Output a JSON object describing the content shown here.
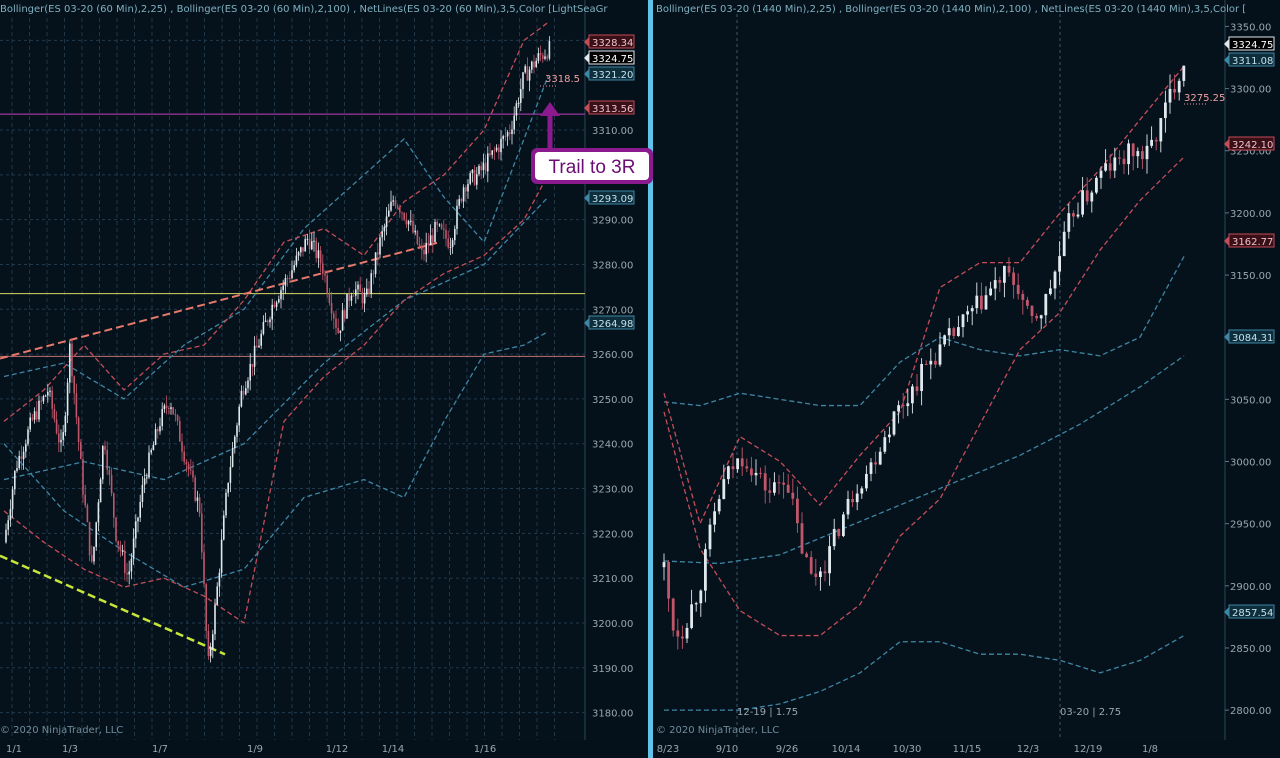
{
  "colors": {
    "background": "#05121c",
    "separator": "#5fc4e8",
    "candle_up": "#dfe9ee",
    "candle_down": "#c0566a",
    "bb_fast": "#c44d58",
    "bb_slow": "#3e86a4",
    "trendline_upper": "#e8786c",
    "trendline_lower": "#c8e63a",
    "magenta_line": "#c040c0",
    "yellow_line": "#d8d860",
    "salmon_line": "#c07070",
    "callout": "#8a1a8e"
  },
  "left": {
    "header": "Bollinger(ES 03-20 (60 Min),2,25) , Bollinger(ES 03-20 (60 Min),2,100) , NetLines(ES 03-20 (60 Min),3,5,Color  [LightSeaGr",
    "copyright": "© 2020 NinjaTrader, LLC",
    "y_ticks": [
      "3310.00",
      "3300.00",
      "3290.00",
      "3280.00",
      "3270.00",
      "3260.00",
      "3250.00",
      "3240.00",
      "3230.00",
      "3220.00",
      "3210.00",
      "3200.00",
      "3190.00",
      "3180.00"
    ],
    "date_labels": [
      "1/1",
      "1/3",
      "1/7",
      "1/9",
      "1/12",
      "1/14",
      "1/16"
    ],
    "price_tags": [
      {
        "text": "3328.34",
        "style": "red"
      },
      {
        "text": "3324.75",
        "style": "white"
      },
      {
        "text": "3321.20",
        "style": "teal"
      },
      {
        "text": "3313.56",
        "style": "red"
      },
      {
        "text": "3293.09",
        "style": "teal"
      },
      {
        "text": "3264.98",
        "style": "teal"
      }
    ],
    "level_label": "3318.5",
    "callout": "Trail to 3R",
    "y_range": [
      3175,
      3335
    ]
  },
  "right": {
    "header": "Bollinger(ES 03-20 (1440 Min),2,25) , Bollinger(ES 03-20 (1440 Min),2,100) , NetLines(ES 03-20 (1440 Min),3,5,Color  [",
    "copyright": "© 2020 NinjaTrader, LLC",
    "y_ticks": [
      "3350.00",
      "3300.00",
      "3250.00",
      "3200.00",
      "3150.00",
      "3100.00",
      "3050.00",
      "3000.00",
      "2950.00",
      "2900.00",
      "2850.00",
      "2800.00"
    ],
    "date_labels": [
      "8/23",
      "9/10",
      "9/26",
      "10/14",
      "10/30",
      "11/15",
      "12/3",
      "12/19",
      "1/8"
    ],
    "price_tags": [
      {
        "text": "3324.75",
        "style": "white"
      },
      {
        "text": "3311.08",
        "style": "teal"
      },
      {
        "text": "3242.10",
        "style": "red"
      },
      {
        "text": "3162.77",
        "style": "red"
      },
      {
        "text": "3084.31",
        "style": "teal"
      },
      {
        "text": "2857.54",
        "style": "teal"
      }
    ],
    "level_label": "3275.25",
    "notes": [
      "12-19 | 1.75",
      "03-20 | 2.75"
    ],
    "y_range": [
      2780,
      3360
    ]
  },
  "chart_data": [
    {
      "type": "candlestick",
      "timeframe": "60 Min",
      "ylim": [
        3175,
        3335
      ],
      "x_ticks": [
        "1/1",
        "1/3",
        "1/7",
        "1/9",
        "1/12",
        "1/14",
        "1/16"
      ],
      "path": [
        [
          0,
          3218
        ],
        [
          12,
          3235
        ],
        [
          28,
          3245
        ],
        [
          44,
          3252
        ],
        [
          58,
          3238
        ],
        [
          66,
          3262
        ],
        [
          78,
          3232
        ],
        [
          88,
          3212
        ],
        [
          100,
          3242
        ],
        [
          112,
          3220
        ],
        [
          124,
          3210
        ],
        [
          140,
          3232
        ],
        [
          156,
          3245
        ],
        [
          166,
          3250
        ],
        [
          180,
          3238
        ],
        [
          196,
          3225
        ],
        [
          204,
          3190
        ],
        [
          212,
          3205
        ],
        [
          224,
          3232
        ],
        [
          238,
          3252
        ],
        [
          254,
          3262
        ],
        [
          270,
          3272
        ],
        [
          286,
          3278
        ],
        [
          304,
          3286
        ],
        [
          318,
          3280
        ],
        [
          334,
          3265
        ],
        [
          348,
          3275
        ],
        [
          362,
          3272
        ],
        [
          376,
          3285
        ],
        [
          390,
          3295
        ],
        [
          404,
          3290
        ],
        [
          418,
          3282
        ],
        [
          432,
          3288
        ],
        [
          446,
          3285
        ],
        [
          460,
          3298
        ],
        [
          474,
          3300
        ],
        [
          490,
          3305
        ],
        [
          506,
          3310
        ],
        [
          520,
          3322
        ],
        [
          534,
          3326
        ],
        [
          544,
          3328
        ]
      ],
      "bb_fast_upper": [
        [
          0,
          3245
        ],
        [
          40,
          3252
        ],
        [
          80,
          3262
        ],
        [
          120,
          3252
        ],
        [
          160,
          3260
        ],
        [
          200,
          3262
        ],
        [
          240,
          3272
        ],
        [
          280,
          3285
        ],
        [
          320,
          3288
        ],
        [
          360,
          3282
        ],
        [
          400,
          3294
        ],
        [
          440,
          3300
        ],
        [
          480,
          3310
        ],
        [
          520,
          3330
        ],
        [
          544,
          3334
        ]
      ],
      "bb_fast_lower": [
        [
          0,
          3225
        ],
        [
          40,
          3218
        ],
        [
          80,
          3212
        ],
        [
          120,
          3208
        ],
        [
          160,
          3210
        ],
        [
          200,
          3206
        ],
        [
          240,
          3200
        ],
        [
          280,
          3245
        ],
        [
          320,
          3255
        ],
        [
          360,
          3262
        ],
        [
          400,
          3272
        ],
        [
          440,
          3278
        ],
        [
          480,
          3282
        ],
        [
          520,
          3290
        ],
        [
          544,
          3300
        ]
      ],
      "bb_slow_upper": [
        [
          0,
          3255
        ],
        [
          60,
          3258
        ],
        [
          120,
          3250
        ],
        [
          180,
          3262
        ],
        [
          240,
          3270
        ],
        [
          300,
          3288
        ],
        [
          360,
          3300
        ],
        [
          400,
          3308
        ],
        [
          440,
          3295
        ],
        [
          480,
          3285
        ],
        [
          520,
          3308
        ],
        [
          544,
          3322
        ]
      ],
      "bb_slow_lower": [
        [
          0,
          3240
        ],
        [
          60,
          3225
        ],
        [
          120,
          3216
        ],
        [
          180,
          3208
        ],
        [
          240,
          3212
        ],
        [
          300,
          3228
        ],
        [
          360,
          3232
        ],
        [
          400,
          3228
        ],
        [
          440,
          3245
        ],
        [
          480,
          3260
        ],
        [
          520,
          3262
        ],
        [
          544,
          3265
        ]
      ],
      "bb_slow_mid": [
        [
          0,
          3232
        ],
        [
          80,
          3236
        ],
        [
          160,
          3232
        ],
        [
          240,
          3240
        ],
        [
          320,
          3258
        ],
        [
          400,
          3272
        ],
        [
          480,
          3280
        ],
        [
          544,
          3295
        ]
      ],
      "horizontal_levels": [
        3313.56,
        3273.5,
        3259.5
      ],
      "trendline_upper": [
        [
          0,
          3259
        ],
        [
          440,
          3285
        ]
      ],
      "trendline_lower": [
        [
          0,
          3215
        ],
        [
          225,
          3193
        ]
      ],
      "annotation": "Trail to 3R"
    },
    {
      "type": "candlestick",
      "timeframe": "1440 Min",
      "ylim": [
        2780,
        3360
      ],
      "x_ticks": [
        "8/23",
        "9/10",
        "9/26",
        "10/14",
        "10/30",
        "11/15",
        "12/3",
        "12/19",
        "1/8"
      ],
      "path": [
        [
          664,
          2915
        ],
        [
          672,
          2870
        ],
        [
          680,
          2860
        ],
        [
          690,
          2880
        ],
        [
          700,
          2900
        ],
        [
          712,
          2950
        ],
        [
          722,
          2980
        ],
        [
          732,
          2995
        ],
        [
          744,
          3005
        ],
        [
          756,
          2990
        ],
        [
          770,
          2975
        ],
        [
          786,
          2990
        ],
        [
          800,
          2935
        ],
        [
          812,
          2905
        ],
        [
          826,
          2920
        ],
        [
          840,
          2950
        ],
        [
          856,
          2980
        ],
        [
          870,
          2995
        ],
        [
          884,
          3020
        ],
        [
          896,
          3040
        ],
        [
          910,
          3055
        ],
        [
          924,
          3075
        ],
        [
          940,
          3090
        ],
        [
          956,
          3105
        ],
        [
          972,
          3120
        ],
        [
          988,
          3135
        ],
        [
          1004,
          3150
        ],
        [
          1018,
          3140
        ],
        [
          1030,
          3110
        ],
        [
          1044,
          3125
        ],
        [
          1058,
          3160
        ],
        [
          1072,
          3200
        ],
        [
          1088,
          3215
        ],
        [
          1104,
          3235
        ],
        [
          1118,
          3240
        ],
        [
          1132,
          3250
        ],
        [
          1146,
          3245
        ],
        [
          1160,
          3270
        ],
        [
          1172,
          3300
        ],
        [
          1184,
          3322
        ]
      ],
      "bb_fast_upper": [
        [
          664,
          3055
        ],
        [
          700,
          2950
        ],
        [
          740,
          3020
        ],
        [
          780,
          3000
        ],
        [
          820,
          2965
        ],
        [
          860,
          3005
        ],
        [
          900,
          3040
        ],
        [
          940,
          3140
        ],
        [
          980,
          3160
        ],
        [
          1020,
          3160
        ],
        [
          1060,
          3200
        ],
        [
          1100,
          3235
        ],
        [
          1140,
          3275
        ],
        [
          1184,
          3318
        ]
      ],
      "bb_fast_lower": [
        [
          664,
          3040
        ],
        [
          700,
          2930
        ],
        [
          740,
          2880
        ],
        [
          780,
          2860
        ],
        [
          820,
          2860
        ],
        [
          860,
          2885
        ],
        [
          900,
          2940
        ],
        [
          940,
          2970
        ],
        [
          980,
          3030
        ],
        [
          1020,
          3090
        ],
        [
          1060,
          3120
        ],
        [
          1100,
          3170
        ],
        [
          1140,
          3210
        ],
        [
          1184,
          3245
        ]
      ],
      "bb_slow_upper": [
        [
          664,
          3048
        ],
        [
          700,
          3045
        ],
        [
          740,
          3055
        ],
        [
          780,
          3050
        ],
        [
          820,
          3045
        ],
        [
          860,
          3045
        ],
        [
          900,
          3080
        ],
        [
          940,
          3100
        ],
        [
          980,
          3090
        ],
        [
          1020,
          3085
        ],
        [
          1060,
          3090
        ],
        [
          1100,
          3085
        ],
        [
          1140,
          3100
        ],
        [
          1184,
          3165
        ]
      ],
      "bb_slow_lower": [
        [
          664,
          2800
        ],
        [
          700,
          2800
        ],
        [
          740,
          2800
        ],
        [
          780,
          2805
        ],
        [
          820,
          2815
        ],
        [
          860,
          2830
        ],
        [
          900,
          2855
        ],
        [
          940,
          2855
        ],
        [
          980,
          2845
        ],
        [
          1020,
          2845
        ],
        [
          1060,
          2840
        ],
        [
          1100,
          2830
        ],
        [
          1140,
          2840
        ],
        [
          1184,
          2860
        ]
      ],
      "bb_slow_mid": [
        [
          664,
          2920
        ],
        [
          720,
          2918
        ],
        [
          780,
          2925
        ],
        [
          840,
          2945
        ],
        [
          900,
          2965
        ],
        [
          960,
          2985
        ],
        [
          1020,
          3005
        ],
        [
          1080,
          3030
        ],
        [
          1140,
          3060
        ],
        [
          1184,
          3085
        ]
      ],
      "level": 3275.25,
      "notes": [
        "12-19 | 1.75",
        "03-20 | 2.75"
      ]
    }
  ]
}
